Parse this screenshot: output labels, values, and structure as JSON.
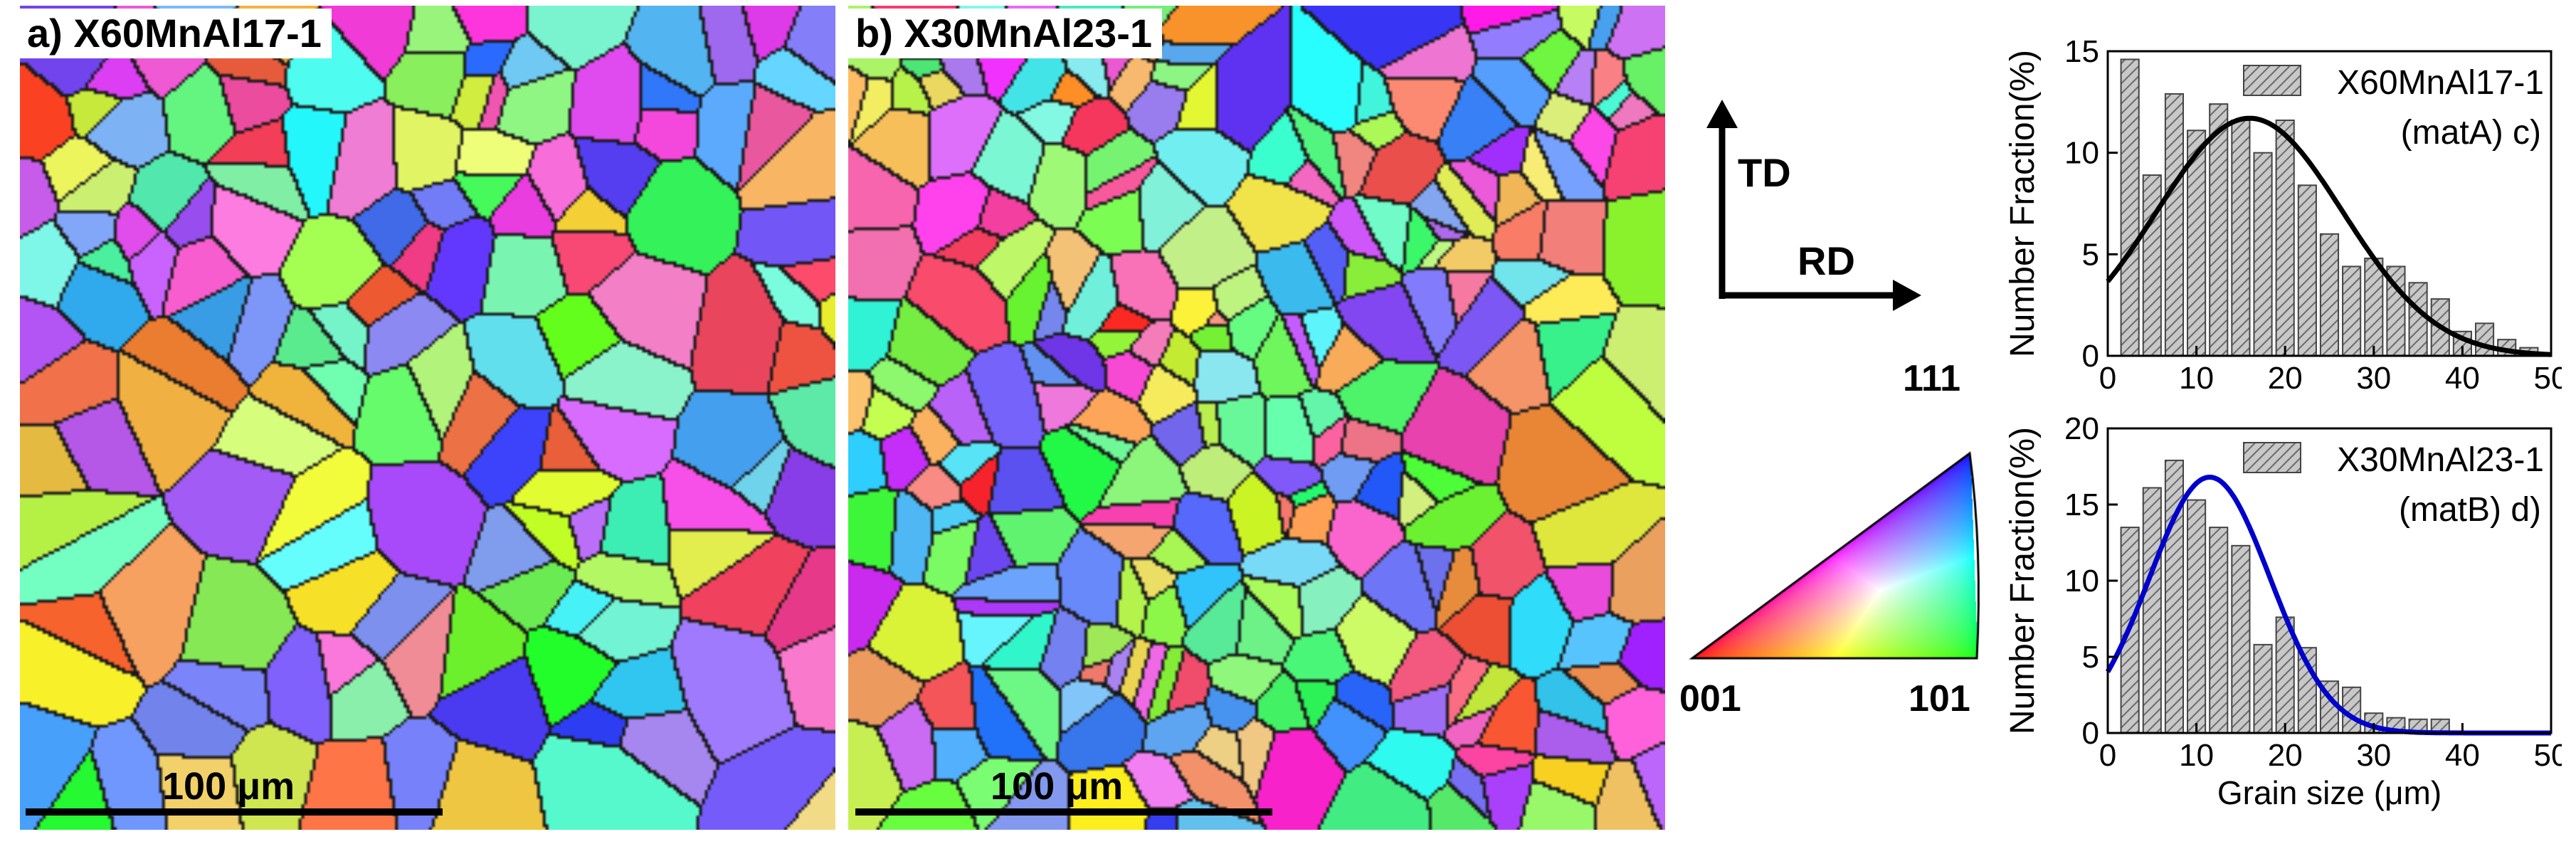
{
  "maps": [
    {
      "id": "a",
      "label": "a) X60MnAl17-1",
      "scalebar": "100 μm",
      "seed": 17,
      "cells": 150
    },
    {
      "id": "b",
      "label": "b) X30MnAl23-1",
      "scalebar": "100 μm",
      "seed": 23,
      "cells": 260
    }
  ],
  "directions": {
    "td": "TD",
    "rd": "RD"
  },
  "ipf_key": {
    "corner_001": "001",
    "corner_101": "101",
    "corner_111": "111"
  },
  "colors": {
    "bars": "#9e9e9e",
    "fit_matA": "#000000",
    "fit_matB": "#0000cc"
  },
  "chart_data": [
    {
      "type": "bar",
      "subtype": "histogram with normal fit",
      "bin_centers": [
        2.5,
        5,
        7.5,
        10,
        12.5,
        15,
        17.5,
        20,
        22.5,
        25,
        27.5,
        30,
        32.5,
        35,
        37.5,
        40,
        42.5,
        45,
        47.5
      ],
      "values": [
        14.6,
        8.9,
        12.9,
        11.1,
        12.4,
        11.6,
        10.0,
        11.6,
        8.4,
        6.0,
        4.4,
        4.8,
        4.4,
        3.6,
        2.8,
        1.2,
        1.6,
        0.8,
        0.4
      ],
      "fit": {
        "mean": 16.0,
        "sd": 10.5,
        "peak": 11.7
      },
      "legend": [
        "X60MnAl17-1",
        "(matA) c)"
      ],
      "xlabel": "",
      "ylabel": "Number Fraction(%)",
      "xlim": [
        0,
        50
      ],
      "ylim": [
        0,
        15
      ],
      "xticks": [
        0,
        10,
        20,
        30,
        40,
        50
      ],
      "yticks": [
        0,
        5,
        10,
        15
      ]
    },
    {
      "type": "bar",
      "subtype": "histogram with normal fit",
      "bin_centers": [
        2.5,
        5,
        7.5,
        10,
        12.5,
        15,
        17.5,
        20,
        22.5,
        25,
        27.5,
        30,
        32.5,
        35,
        37.5
      ],
      "values": [
        13.5,
        16.1,
        17.9,
        15.3,
        13.5,
        12.3,
        5.8,
        7.6,
        5.6,
        3.4,
        3.0,
        1.3,
        1.0,
        0.9,
        0.9
      ],
      "fit": {
        "mean": 11.5,
        "sd": 6.8,
        "peak": 16.8
      },
      "legend": [
        "X30MnAl23-1",
        "(matB) d)"
      ],
      "xlabel": "Grain size (μm)",
      "ylabel": "Number Fraction(%)",
      "xlim": [
        0,
        50
      ],
      "ylim": [
        0,
        20
      ],
      "xticks": [
        0,
        10,
        20,
        30,
        40,
        50
      ],
      "yticks": [
        0,
        5,
        10,
        15,
        20
      ]
    }
  ]
}
